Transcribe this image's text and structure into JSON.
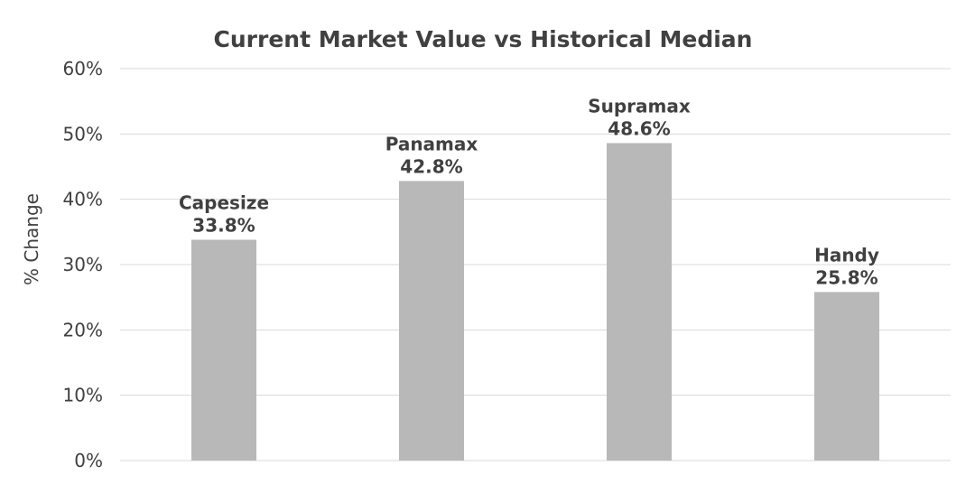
{
  "chart_data": {
    "type": "bar",
    "title": "Current Market Value vs Historical Median",
    "ylabel": "% Change",
    "ylim": [
      0,
      60
    ],
    "yticks": [
      0,
      10,
      20,
      30,
      40,
      50,
      60
    ],
    "ytick_labels": [
      "0%",
      "10%",
      "20%",
      "30%",
      "40%",
      "50%",
      "60%"
    ],
    "categories": [
      "Capesize",
      "Panamax",
      "Supramax",
      "Handy"
    ],
    "values": [
      33.8,
      42.8,
      48.6,
      25.8
    ],
    "value_labels": [
      "33.8%",
      "42.8%",
      "48.6%",
      "25.8%"
    ],
    "bar_color": "#b8b8b8",
    "grid": true,
    "legend": "none"
  }
}
